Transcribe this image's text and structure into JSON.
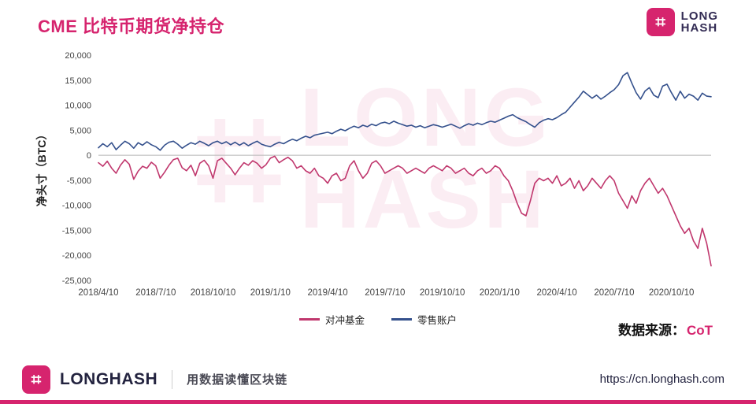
{
  "header": {
    "title": "CME 比特币期货净持仓",
    "logo": {
      "line1": "LONG",
      "line2": "HASH"
    }
  },
  "icons": {
    "hash": "⌗"
  },
  "chart_data": {
    "type": "line",
    "title": "CME 比特币期货净持仓",
    "ylabel": "净头寸（BTC）",
    "ylim": [
      -25000,
      20000
    ],
    "ytick_step": 5000,
    "grid": false,
    "legend_position": "bottom",
    "x_tick_labels": [
      "2018/4/10",
      "2018/7/10",
      "2018/10/10",
      "2019/1/10",
      "2019/4/10",
      "2019/7/10",
      "2019/10/10",
      "2020/1/10",
      "2020/4/10",
      "2020/7/10",
      "2020/10/10"
    ],
    "x_tick_indices": [
      0,
      13,
      26,
      39,
      52,
      65,
      78,
      91,
      104,
      117,
      130
    ],
    "series": [
      {
        "name": "对冲基金",
        "color": "#c0376d",
        "values": [
          -1500,
          -2200,
          -1200,
          -2600,
          -3600,
          -2000,
          -900,
          -1800,
          -4800,
          -3200,
          -2200,
          -2600,
          -1400,
          -2100,
          -4600,
          -3400,
          -2000,
          -900,
          -600,
          -2500,
          -3100,
          -2000,
          -4100,
          -1600,
          -1000,
          -2100,
          -4600,
          -1100,
          -600,
          -1600,
          -2600,
          -3900,
          -2600,
          -1500,
          -2000,
          -1100,
          -1600,
          -2600,
          -1900,
          -600,
          -200,
          -1500,
          -900,
          -400,
          -1100,
          -2600,
          -2100,
          -3100,
          -3600,
          -2600,
          -4100,
          -4600,
          -5600,
          -4100,
          -3600,
          -5100,
          -4600,
          -2100,
          -1100,
          -3100,
          -4600,
          -3600,
          -1600,
          -1100,
          -2100,
          -3600,
          -3100,
          -2600,
          -2100,
          -2600,
          -3600,
          -3100,
          -2600,
          -3100,
          -3600,
          -2600,
          -2100,
          -2600,
          -3100,
          -2100,
          -2600,
          -3600,
          -3100,
          -2600,
          -3600,
          -4100,
          -3100,
          -2600,
          -3600,
          -3100,
          -2100,
          -2600,
          -4100,
          -5100,
          -7100,
          -9600,
          -11600,
          -12100,
          -9100,
          -5600,
          -4600,
          -5100,
          -4600,
          -5600,
          -4100,
          -6100,
          -5600,
          -4600,
          -6600,
          -5100,
          -7100,
          -6100,
          -4600,
          -5600,
          -6600,
          -5100,
          -4100,
          -5100,
          -7600,
          -9100,
          -10600,
          -8100,
          -9600,
          -7100,
          -5600,
          -4600,
          -6100,
          -7600,
          -6600,
          -8100,
          -10100,
          -12100,
          -14100,
          -15600,
          -14600,
          -17100,
          -18600,
          -14600,
          -17600,
          -22100
        ]
      },
      {
        "name": "零售账户",
        "color": "#34508c",
        "values": [
          1500,
          2300,
          1700,
          2500,
          1100,
          2000,
          2800,
          2300,
          1400,
          2500,
          2000,
          2700,
          2100,
          1700,
          1000,
          2000,
          2600,
          2800,
          2200,
          1400,
          2000,
          2500,
          2200,
          2800,
          2400,
          1900,
          2500,
          2800,
          2300,
          2700,
          2100,
          2600,
          2000,
          2500,
          1900,
          2400,
          2800,
          2200,
          1900,
          1700,
          2200,
          2600,
          2300,
          2800,
          3200,
          2900,
          3400,
          3800,
          3500,
          4000,
          4200,
          4400,
          4600,
          4300,
          4800,
          5200,
          4900,
          5400,
          5800,
          5500,
          6000,
          5700,
          6200,
          5900,
          6400,
          6600,
          6300,
          6800,
          6400,
          6100,
          5800,
          6000,
          5600,
          5900,
          5500,
          5800,
          6100,
          5900,
          5600,
          5900,
          6200,
          5800,
          5400,
          5900,
          6300,
          6000,
          6400,
          6100,
          6500,
          6800,
          6600,
          7000,
          7400,
          7800,
          8100,
          7500,
          7100,
          6700,
          6100,
          5600,
          6500,
          7000,
          7300,
          7100,
          7500,
          8100,
          8600,
          9600,
          10600,
          11600,
          12800,
          12100,
          11400,
          12000,
          11200,
          11800,
          12500,
          13100,
          14100,
          15900,
          16500,
          14400,
          12500,
          11200,
          12800,
          13500,
          12000,
          11500,
          13800,
          14200,
          12500,
          11000,
          12800,
          11400,
          12200,
          11800,
          11000,
          12400,
          11800,
          11700
        ]
      }
    ]
  },
  "source": {
    "label": "数据来源：",
    "value": "CoT"
  },
  "footer": {
    "brand": "LONGHASH",
    "tagline": "用数据读懂区块链",
    "url": "https://cn.longhash.com"
  },
  "colors": {
    "accent": "#d6246e",
    "hedge": "#c0376d",
    "retail": "#34508c"
  }
}
